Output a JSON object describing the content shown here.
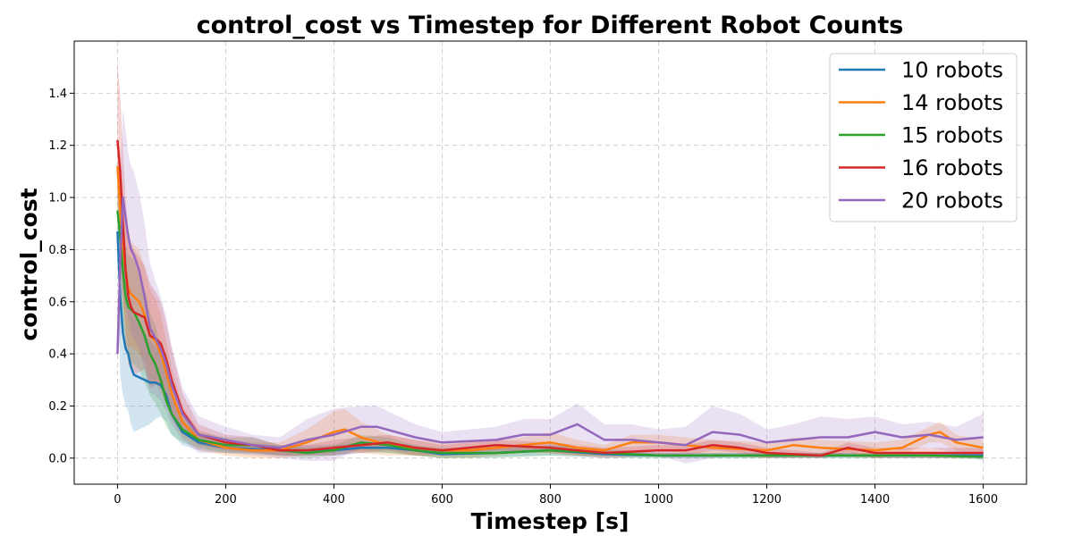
{
  "chart_data": {
    "type": "line",
    "title": "control_cost vs Timestep for Different Robot Counts",
    "xlabel": "Timestep [s]",
    "ylabel": "control_cost",
    "xlim": [
      -80,
      1680
    ],
    "ylim": [
      -0.1,
      1.6
    ],
    "x_ticks": [
      0,
      200,
      400,
      600,
      800,
      1000,
      1200,
      1400,
      1600
    ],
    "y_ticks": [
      0.0,
      0.2,
      0.4,
      0.6,
      0.8,
      1.0,
      1.2,
      1.4
    ],
    "y_tick_format": 1,
    "grid": true,
    "legend_position": "top-right",
    "band": "shaded spread around each mean line",
    "series": [
      {
        "name": "10 robots",
        "color": "#1f77b4",
        "x": [
          0,
          5,
          10,
          15,
          20,
          25,
          30,
          40,
          50,
          60,
          70,
          80,
          90,
          100,
          120,
          150,
          200,
          250,
          300,
          350,
          400,
          450,
          500,
          550,
          600,
          700,
          800,
          900,
          1000,
          1100,
          1200,
          1300,
          1400,
          1500,
          1600
        ],
        "y": [
          0.87,
          0.62,
          0.48,
          0.42,
          0.4,
          0.35,
          0.32,
          0.31,
          0.3,
          0.29,
          0.29,
          0.28,
          0.24,
          0.17,
          0.1,
          0.06,
          0.04,
          0.035,
          0.03,
          0.03,
          0.03,
          0.04,
          0.04,
          0.03,
          0.015,
          0.02,
          0.03,
          0.015,
          0.01,
          0.01,
          0.01,
          0.01,
          0.01,
          0.01,
          0.01
        ],
        "spread": [
          0.0,
          0.3,
          0.24,
          0.22,
          0.22,
          0.22,
          0.22,
          0.2,
          0.18,
          0.16,
          0.14,
          0.12,
          0.1,
          0.08,
          0.05,
          0.03,
          0.02,
          0.02,
          0.02,
          0.02,
          0.02,
          0.02,
          0.02,
          0.02,
          0.015,
          0.015,
          0.02,
          0.015,
          0.01,
          0.01,
          0.01,
          0.01,
          0.01,
          0.01,
          0.01
        ]
      },
      {
        "name": "14 robots",
        "color": "#ff7f0e",
        "x": [
          0,
          5,
          10,
          15,
          20,
          25,
          30,
          40,
          50,
          60,
          70,
          80,
          90,
          100,
          120,
          150,
          200,
          250,
          300,
          350,
          400,
          420,
          450,
          500,
          550,
          600,
          650,
          700,
          750,
          800,
          850,
          900,
          950,
          1000,
          1100,
          1200,
          1250,
          1300,
          1400,
          1450,
          1500,
          1520,
          1550,
          1600
        ],
        "y": [
          1.12,
          0.95,
          0.8,
          0.72,
          0.65,
          0.63,
          0.62,
          0.6,
          0.55,
          0.47,
          0.45,
          0.4,
          0.33,
          0.25,
          0.14,
          0.07,
          0.04,
          0.03,
          0.03,
          0.06,
          0.1,
          0.11,
          0.08,
          0.05,
          0.04,
          0.03,
          0.03,
          0.04,
          0.05,
          0.06,
          0.04,
          0.03,
          0.06,
          0.06,
          0.04,
          0.03,
          0.05,
          0.04,
          0.03,
          0.04,
          0.09,
          0.1,
          0.06,
          0.04
        ],
        "spread": [
          0.1,
          0.22,
          0.22,
          0.22,
          0.22,
          0.2,
          0.2,
          0.2,
          0.18,
          0.18,
          0.16,
          0.15,
          0.12,
          0.1,
          0.06,
          0.04,
          0.03,
          0.03,
          0.03,
          0.05,
          0.08,
          0.08,
          0.06,
          0.04,
          0.03,
          0.03,
          0.03,
          0.03,
          0.03,
          0.04,
          0.03,
          0.02,
          0.03,
          0.03,
          0.03,
          0.03,
          0.03,
          0.03,
          0.03,
          0.03,
          0.03,
          0.04,
          0.03,
          0.03
        ]
      },
      {
        "name": "15 robots",
        "color": "#2ca02c",
        "x": [
          0,
          5,
          10,
          15,
          20,
          25,
          30,
          40,
          50,
          60,
          70,
          80,
          90,
          100,
          120,
          150,
          200,
          250,
          300,
          350,
          400,
          450,
          500,
          550,
          600,
          700,
          800,
          900,
          1000,
          1100,
          1200,
          1300,
          1400,
          1500,
          1600
        ],
        "y": [
          0.95,
          0.85,
          0.72,
          0.62,
          0.58,
          0.57,
          0.56,
          0.52,
          0.47,
          0.4,
          0.36,
          0.3,
          0.22,
          0.17,
          0.11,
          0.07,
          0.05,
          0.05,
          0.03,
          0.02,
          0.03,
          0.06,
          0.05,
          0.03,
          0.02,
          0.02,
          0.03,
          0.02,
          0.01,
          0.01,
          0.01,
          0.01,
          0.01,
          0.01,
          0.005
        ],
        "spread": [
          0.1,
          0.2,
          0.22,
          0.2,
          0.2,
          0.2,
          0.2,
          0.18,
          0.18,
          0.16,
          0.15,
          0.13,
          0.1,
          0.08,
          0.05,
          0.03,
          0.03,
          0.03,
          0.02,
          0.02,
          0.02,
          0.03,
          0.03,
          0.02,
          0.02,
          0.02,
          0.02,
          0.015,
          0.01,
          0.01,
          0.01,
          0.01,
          0.01,
          0.01,
          0.01
        ]
      },
      {
        "name": "16 robots",
        "color": "#d62728",
        "x": [
          0,
          5,
          10,
          15,
          20,
          25,
          30,
          40,
          50,
          60,
          70,
          80,
          90,
          100,
          120,
          150,
          200,
          250,
          300,
          350,
          400,
          450,
          500,
          550,
          600,
          700,
          800,
          900,
          1000,
          1050,
          1100,
          1150,
          1200,
          1300,
          1350,
          1400,
          1500,
          1600
        ],
        "y": [
          1.22,
          1.1,
          0.9,
          0.72,
          0.62,
          0.58,
          0.56,
          0.55,
          0.54,
          0.47,
          0.46,
          0.44,
          0.38,
          0.3,
          0.18,
          0.09,
          0.06,
          0.05,
          0.03,
          0.03,
          0.04,
          0.05,
          0.06,
          0.04,
          0.03,
          0.05,
          0.04,
          0.02,
          0.03,
          0.03,
          0.05,
          0.04,
          0.02,
          0.01,
          0.04,
          0.02,
          0.02,
          0.02
        ],
        "spread": [
          0.3,
          0.3,
          0.28,
          0.28,
          0.26,
          0.24,
          0.24,
          0.22,
          0.2,
          0.2,
          0.18,
          0.16,
          0.14,
          0.12,
          0.07,
          0.04,
          0.03,
          0.03,
          0.02,
          0.02,
          0.03,
          0.03,
          0.03,
          0.03,
          0.02,
          0.02,
          0.02,
          0.02,
          0.02,
          0.02,
          0.02,
          0.02,
          0.02,
          0.01,
          0.02,
          0.02,
          0.02,
          0.02
        ]
      },
      {
        "name": "20 robots",
        "color": "#9467bd",
        "x": [
          0,
          5,
          10,
          15,
          20,
          25,
          30,
          40,
          50,
          60,
          70,
          80,
          90,
          100,
          120,
          150,
          200,
          250,
          300,
          350,
          400,
          450,
          480,
          550,
          600,
          700,
          750,
          800,
          850,
          900,
          950,
          1000,
          1050,
          1100,
          1150,
          1200,
          1250,
          1300,
          1350,
          1400,
          1450,
          1500,
          1550,
          1600
        ],
        "y": [
          0.4,
          0.75,
          1.0,
          0.92,
          0.85,
          0.8,
          0.78,
          0.72,
          0.62,
          0.5,
          0.46,
          0.42,
          0.36,
          0.28,
          0.17,
          0.09,
          0.07,
          0.05,
          0.04,
          0.07,
          0.09,
          0.12,
          0.12,
          0.08,
          0.06,
          0.07,
          0.09,
          0.09,
          0.13,
          0.07,
          0.07,
          0.06,
          0.05,
          0.1,
          0.09,
          0.06,
          0.07,
          0.08,
          0.08,
          0.1,
          0.08,
          0.09,
          0.07,
          0.08
        ],
        "spread": [
          0.0,
          0.3,
          0.34,
          0.34,
          0.32,
          0.32,
          0.32,
          0.3,
          0.28,
          0.25,
          0.22,
          0.2,
          0.18,
          0.15,
          0.1,
          0.07,
          0.05,
          0.04,
          0.04,
          0.08,
          0.1,
          0.08,
          0.08,
          0.05,
          0.04,
          0.05,
          0.06,
          0.06,
          0.08,
          0.06,
          0.06,
          0.05,
          0.07,
          0.1,
          0.08,
          0.05,
          0.06,
          0.08,
          0.07,
          0.06,
          0.05,
          0.05,
          0.05,
          0.09
        ]
      }
    ]
  }
}
